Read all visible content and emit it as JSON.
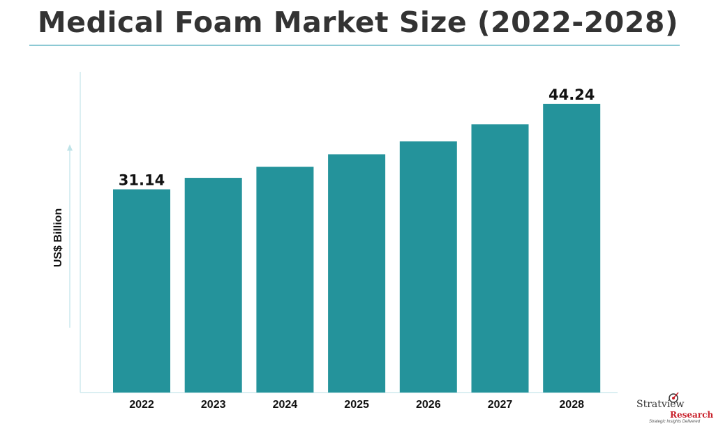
{
  "chart_data": {
    "type": "bar",
    "title": "Medical Foam Market Size (2022-2028)",
    "ylabel": "US$ Billion",
    "xlabel": "",
    "categories": [
      "2022",
      "2023",
      "2024",
      "2025",
      "2026",
      "2027",
      "2028"
    ],
    "values": [
      31.14,
      32.9,
      34.6,
      36.5,
      38.5,
      41.1,
      44.24
    ],
    "data_labels": [
      "31.14",
      "",
      "",
      "",
      "",
      "",
      "44.24"
    ],
    "ylim": [
      0,
      50
    ],
    "grid": false,
    "legend": "none",
    "bar_color": "#24939b",
    "axis_color": "#cfeaee"
  },
  "logo": {
    "brand_top": "Stratview",
    "brand_bottom": "Research",
    "tagline": "Strategic Insights Delivered"
  }
}
